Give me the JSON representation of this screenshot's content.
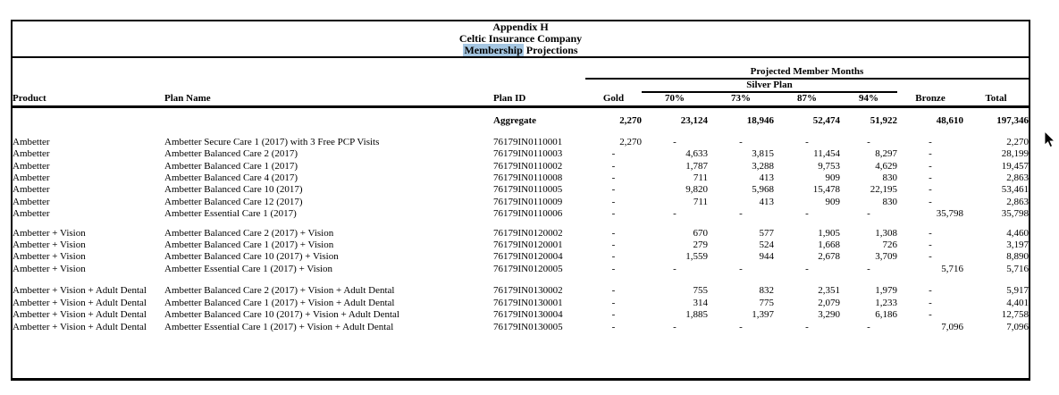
{
  "title": {
    "line1": "Appendix H",
    "line2": "Celtic Insurance Company",
    "line3_highlight": "Membership",
    "line3_rest": " Projections"
  },
  "header": {
    "projected_member_months": "Projected Member Months",
    "silver_plan": "Silver Plan",
    "columns": [
      "Product",
      "Plan Name",
      "Plan ID",
      "Gold",
      "70%",
      "73%",
      "87%",
      "94%",
      "Bronze",
      "Total"
    ]
  },
  "aggregate": {
    "label": "Aggregate",
    "values": [
      "2,270",
      "23,124",
      "18,946",
      "52,474",
      "51,922",
      "48,610",
      "197,346"
    ]
  },
  "groups": [
    {
      "product_label": "Ambetter",
      "rows": [
        {
          "product": "Ambetter",
          "plan_name": "Ambetter Secure Care 1 (2017) with 3 Free PCP Visits",
          "plan_id": "76179IN0110001",
          "values": [
            "2,270",
            "-",
            "-",
            "-",
            "-",
            "-",
            "2,270"
          ]
        },
        {
          "product": "Ambetter",
          "plan_name": "Ambetter Balanced Care 2 (2017)",
          "plan_id": "76179IN0110003",
          "values": [
            "-",
            "4,633",
            "3,815",
            "11,454",
            "8,297",
            "-",
            "28,199"
          ]
        },
        {
          "product": "Ambetter",
          "plan_name": "Ambetter Balanced Care 1 (2017)",
          "plan_id": "76179IN0110002",
          "values": [
            "-",
            "1,787",
            "3,288",
            "9,753",
            "4,629",
            "-",
            "19,457"
          ]
        },
        {
          "product": "Ambetter",
          "plan_name": "Ambetter Balanced Care 4 (2017)",
          "plan_id": "76179IN0110008",
          "values": [
            "-",
            "711",
            "413",
            "909",
            "830",
            "-",
            "2,863"
          ]
        },
        {
          "product": "Ambetter",
          "plan_name": "Ambetter Balanced Care 10 (2017)",
          "plan_id": "76179IN0110005",
          "values": [
            "-",
            "9,820",
            "5,968",
            "15,478",
            "22,195",
            "-",
            "53,461"
          ]
        },
        {
          "product": "Ambetter",
          "plan_name": "Ambetter Balanced Care 12 (2017)",
          "plan_id": "76179IN0110009",
          "values": [
            "-",
            "711",
            "413",
            "909",
            "830",
            "-",
            "2,863"
          ]
        },
        {
          "product": "Ambetter",
          "plan_name": "Ambetter Essential Care 1 (2017)",
          "plan_id": "76179IN0110006",
          "values": [
            "-",
            "-",
            "-",
            "-",
            "-",
            "35,798",
            "35,798"
          ]
        }
      ]
    },
    {
      "product_label": "Ambetter + Vision",
      "rows": [
        {
          "product": "Ambetter + Vision",
          "plan_name": "Ambetter Balanced Care 2 (2017) + Vision",
          "plan_id": "76179IN0120002",
          "values": [
            "-",
            "670",
            "577",
            "1,905",
            "1,308",
            "-",
            "4,460"
          ]
        },
        {
          "product": "Ambetter + Vision",
          "plan_name": "Ambetter Balanced Care 1 (2017) + Vision",
          "plan_id": "76179IN0120001",
          "values": [
            "-",
            "279",
            "524",
            "1,668",
            "726",
            "-",
            "3,197"
          ]
        },
        {
          "product": "Ambetter + Vision",
          "plan_name": "Ambetter Balanced Care 10 (2017) + Vision",
          "plan_id": "76179IN0120004",
          "values": [
            "-",
            "1,559",
            "944",
            "2,678",
            "3,709",
            "-",
            "8,890"
          ]
        },
        {
          "product": "Ambetter + Vision",
          "plan_name": "Ambetter Essential Care 1 (2017) + Vision",
          "plan_id": "76179IN0120005",
          "values": [
            "-",
            "-",
            "-",
            "-",
            "-",
            "5,716",
            "5,716"
          ]
        }
      ]
    },
    {
      "product_label": "Ambetter + Vision + Adult Dental",
      "rows": [
        {
          "product": "Ambetter + Vision + Adult Dental",
          "plan_name": "Ambetter Balanced Care 2 (2017) + Vision + Adult Dental",
          "plan_id": "76179IN0130002",
          "values": [
            "-",
            "755",
            "832",
            "2,351",
            "1,979",
            "-",
            "5,917"
          ]
        },
        {
          "product": "Ambetter + Vision + Adult Dental",
          "plan_name": "Ambetter Balanced Care 1 (2017) + Vision + Adult Dental",
          "plan_id": "76179IN0130001",
          "values": [
            "-",
            "314",
            "775",
            "2,079",
            "1,233",
            "-",
            "4,401"
          ]
        },
        {
          "product": "Ambetter + Vision + Adult Dental",
          "plan_name": "Ambetter Balanced Care 10 (2017) + Vision + Adult Dental",
          "plan_id": "76179IN0130004",
          "values": [
            "-",
            "1,885",
            "1,397",
            "3,290",
            "6,186",
            "-",
            "12,758"
          ]
        },
        {
          "product": "Ambetter + Vision + Adult Dental",
          "plan_name": "Ambetter Essential Care 1 (2017) + Vision + Adult Dental",
          "plan_id": "76179IN0130005",
          "values": [
            "-",
            "-",
            "-",
            "-",
            "-",
            "7,096",
            "7,096"
          ]
        }
      ]
    }
  ],
  "cursor": {
    "type": "arrow-pointer"
  }
}
